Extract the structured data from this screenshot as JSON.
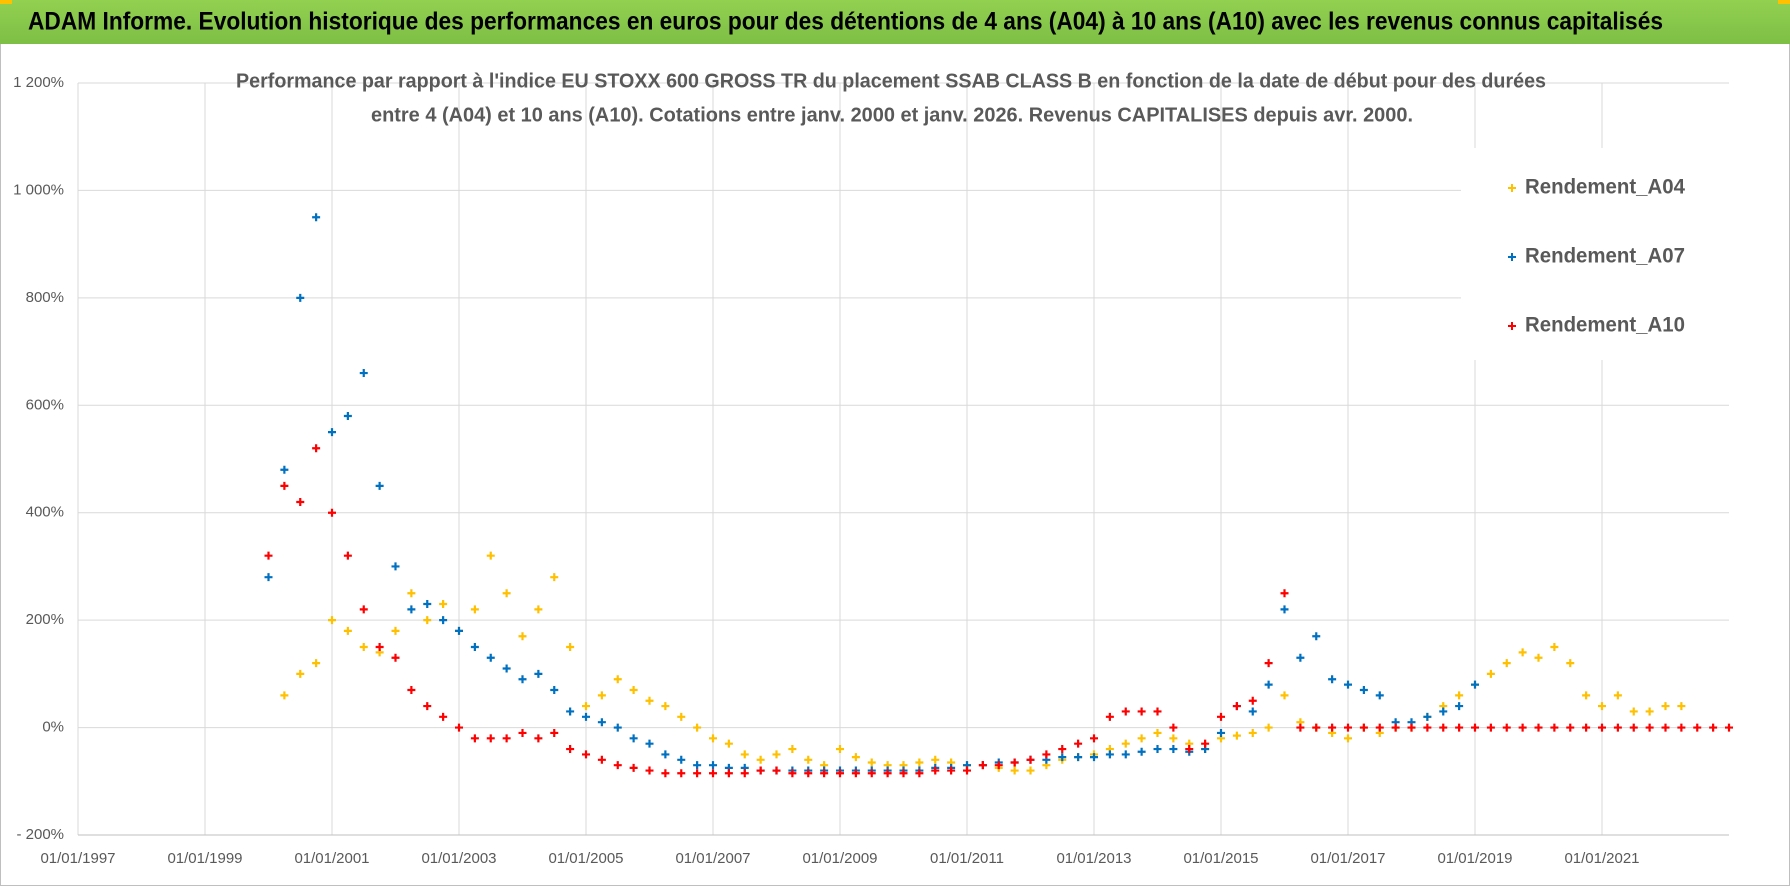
{
  "chart_data": {
    "type": "scatter",
    "header": "ADAM Informe. Evolution historique des performances en euros pour des détentions de 4 ans (A04) à 10 ans (A10) avec les revenus connus capitalisés",
    "title": "Performance par rapport à l'indice EU STOXX 600 GROSS TR  du placement SSAB CLASS B en fonction de la date de début pour des durées",
    "subtitle": "entre 4 (A04) et 10 ans (A10).  Cotations entre janv. 2000 et janv. 2026. Revenus CAPITALISES depuis avr. 2000.",
    "xlim": [
      1997,
      2023
    ],
    "xticks": [
      {
        "value": 1997,
        "label": "01/01/1997"
      },
      {
        "value": 1999,
        "label": "01/01/1999"
      },
      {
        "value": 2001,
        "label": "01/01/2001"
      },
      {
        "value": 2003,
        "label": "01/01/2003"
      },
      {
        "value": 2005,
        "label": "01/01/2005"
      },
      {
        "value": 2007,
        "label": "01/01/2007"
      },
      {
        "value": 2009,
        "label": "01/01/2009"
      },
      {
        "value": 2011,
        "label": "01/01/2011"
      },
      {
        "value": 2013,
        "label": "01/01/2013"
      },
      {
        "value": 2015,
        "label": "01/01/2015"
      },
      {
        "value": 2017,
        "label": "01/01/2017"
      },
      {
        "value": 2019,
        "label": "01/01/2019"
      },
      {
        "value": 2021,
        "label": "01/01/2021"
      }
    ],
    "ylim": [
      -200,
      1200
    ],
    "yticks": [
      {
        "value": -200,
        "label": "- 200%"
      },
      {
        "value": 0,
        "label": "0%"
      },
      {
        "value": 200,
        "label": "200%"
      },
      {
        "value": 400,
        "label": "400%"
      },
      {
        "value": 600,
        "label": "600%"
      },
      {
        "value": 800,
        "label": "800%"
      },
      {
        "value": 1000,
        "label": "1 000%"
      },
      {
        "value": 1200,
        "label": "1 200%"
      }
    ],
    "grid": true,
    "legend": "top-right",
    "x": [
      2000,
      2000.25,
      2000.5,
      2000.75,
      2001,
      2001.25,
      2001.5,
      2001.75,
      2002,
      2002.25,
      2002.5,
      2002.75,
      2003,
      2003.25,
      2003.5,
      2003.75,
      2004,
      2004.25,
      2004.5,
      2004.75,
      2005,
      2005.25,
      2005.5,
      2005.75,
      2006,
      2006.25,
      2006.5,
      2006.75,
      2007,
      2007.25,
      2007.5,
      2007.75,
      2008,
      2008.25,
      2008.5,
      2008.75,
      2009,
      2009.25,
      2009.5,
      2009.75,
      2010,
      2010.25,
      2010.5,
      2010.75,
      2011,
      2011.25,
      2011.5,
      2011.75,
      2012,
      2012.25,
      2012.5,
      2012.75,
      2013,
      2013.25,
      2013.5,
      2013.75,
      2014,
      2014.25,
      2014.5,
      2014.75,
      2015,
      2015.25,
      2015.5,
      2015.75,
      2016,
      2016.25,
      2016.5,
      2016.75,
      2017,
      2017.25,
      2017.5,
      2017.75,
      2018,
      2018.25,
      2018.5,
      2018.75,
      2019,
      2019.25,
      2019.5,
      2019.75,
      2020,
      2020.25,
      2020.5,
      2020.75,
      2021,
      2021.25,
      2021.5,
      2021.75,
      2022,
      2022.25,
      2022.5,
      2022.75,
      2023
    ],
    "series": [
      {
        "name": "Rendement_A04",
        "color": "#FFC000",
        "values": [
          null,
          60,
          100,
          120,
          200,
          180,
          150,
          140,
          180,
          250,
          200,
          230,
          180,
          220,
          320,
          250,
          170,
          220,
          280,
          150,
          40,
          60,
          90,
          70,
          50,
          40,
          20,
          0,
          -20,
          -30,
          -50,
          -60,
          -50,
          -40,
          -60,
          -70,
          -40,
          -55,
          -65,
          -70,
          -70,
          -65,
          -60,
          -65,
          -70,
          -70,
          -75,
          -80,
          -80,
          -70,
          -60,
          -55,
          -50,
          -40,
          -30,
          -20,
          -10,
          -20,
          -30,
          -40,
          -20,
          -15,
          -10,
          0,
          60,
          10,
          0,
          -10,
          -20,
          0,
          -10,
          0,
          0,
          20,
          40,
          60,
          80,
          100,
          120,
          140,
          130,
          150,
          120,
          60,
          40,
          60,
          30,
          30,
          40,
          40,
          null,
          null,
          null
        ]
      },
      {
        "name": "Rendement_A07",
        "color": "#0070C0",
        "values": [
          280,
          480,
          800,
          950,
          550,
          580,
          660,
          450,
          300,
          220,
          230,
          200,
          180,
          150,
          130,
          110,
          90,
          100,
          70,
          30,
          20,
          10,
          0,
          -20,
          -30,
          -50,
          -60,
          -70,
          -70,
          -75,
          -75,
          -80,
          -80,
          -80,
          -80,
          -80,
          -80,
          -80,
          -80,
          -80,
          -80,
          -80,
          -75,
          -75,
          -70,
          -70,
          -65,
          -65,
          -60,
          -60,
          -55,
          -55,
          -55,
          -50,
          -50,
          -45,
          -40,
          -40,
          -45,
          -40,
          -10,
          40,
          30,
          80,
          220,
          130,
          170,
          90,
          80,
          70,
          60,
          10,
          10,
          20,
          30,
          40,
          80,
          null,
          null,
          null,
          null,
          null,
          null,
          null,
          null,
          null,
          null,
          null,
          null,
          null,
          null,
          null,
          null
        ]
      },
      {
        "name": "Rendement_A10",
        "color": "#FF0000",
        "values": [
          320,
          450,
          420,
          520,
          400,
          320,
          220,
          150,
          130,
          70,
          40,
          20,
          0,
          -20,
          -20,
          -20,
          -10,
          -20,
          -10,
          -40,
          -50,
          -60,
          -70,
          -75,
          -80,
          -85,
          -85,
          -85,
          -85,
          -85,
          -85,
          -80,
          -80,
          -85,
          -85,
          -85,
          -85,
          -85,
          -85,
          -85,
          -85,
          -85,
          -80,
          -80,
          -80,
          -70,
          -70,
          -65,
          -60,
          -50,
          -40,
          -30,
          -20,
          20,
          30,
          30,
          30,
          0,
          -40,
          -30,
          20,
          40,
          50,
          120,
          250,
          0,
          0,
          0,
          0,
          0,
          0,
          0,
          0,
          0,
          0,
          0,
          0,
          0,
          0,
          0,
          0,
          0,
          0,
          0,
          0,
          0,
          0,
          0,
          0,
          0,
          0,
          0,
          0
        ]
      }
    ]
  }
}
